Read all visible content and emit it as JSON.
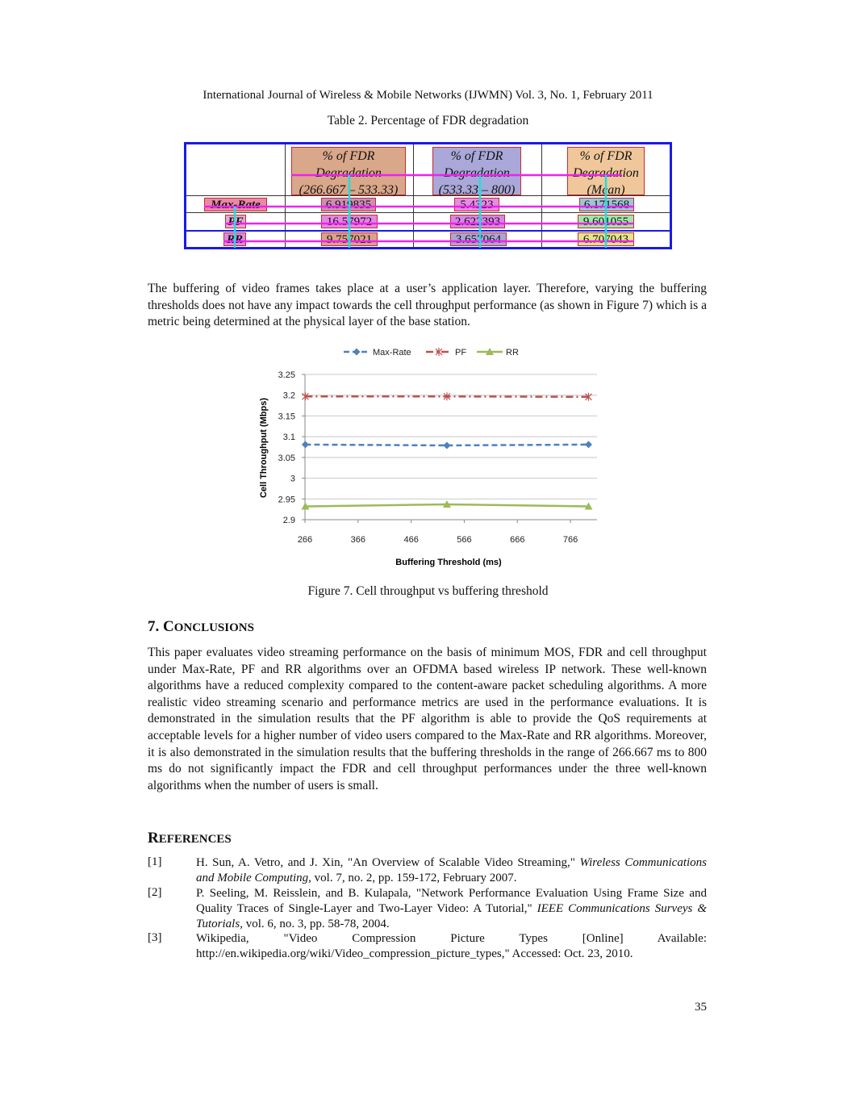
{
  "header": "International Journal of Wireless & Mobile Networks (IJWMN) Vol. 3, No. 1, February 2011",
  "table": {
    "caption": "Table 2. Percentage of FDR degradation",
    "columns": [
      "% of FDR Degradation (266.667 – 533.33)",
      "% of FDR Degradation (533.33 – 800)",
      "% of FDR Degradation (Mean)"
    ],
    "column_lines": [
      [
        "% of FDR",
        "Degradation",
        "(266.667 – 533.33)"
      ],
      [
        "% of FDR",
        "Degradation",
        "(533.33 – 800)"
      ],
      [
        "% of FDR",
        "Degradation",
        "(Mean)"
      ]
    ],
    "rows": [
      {
        "label": "Max-Rate",
        "values": [
          "6.919835",
          "5.4323",
          "6.171568"
        ]
      },
      {
        "label": "PF",
        "values": [
          "16.57972",
          "2.622393",
          "9.601055"
        ]
      },
      {
        "label": "RR",
        "values": [
          "9.757021",
          "3.657064",
          "6.707043"
        ]
      }
    ]
  },
  "paragraph1": "The buffering of video frames takes place at a user’s application layer. Therefore, varying the buffering thresholds does not have any impact towards the cell throughput performance (as shown in Figure 7) which is a metric being determined at the physical layer of the base station.",
  "chart_data": {
    "type": "line",
    "xlabel": "Buffering Threshold (ms)",
    "ylabel": "Cell Throughput (Mbps)",
    "xlim": [
      266,
      816
    ],
    "ylim": [
      2.9,
      3.25
    ],
    "xticks": [
      266,
      366,
      466,
      566,
      666,
      766
    ],
    "yticks": [
      2.9,
      2.95,
      3,
      3.05,
      3.1,
      3.15,
      3.2,
      3.25
    ],
    "ytick_labels": [
      "2.9",
      "2.95",
      "3",
      "3.05",
      "3.1",
      "3.15",
      "3.2",
      "3.25"
    ],
    "grid": true,
    "legend": "top",
    "series": [
      {
        "name": "Max-Rate",
        "color": "#4f81bd",
        "marker": "diamond",
        "x": [
          266.667,
          533.33,
          800
        ],
        "values": [
          3.081,
          3.079,
          3.081
        ]
      },
      {
        "name": "PF",
        "color": "#c0504d",
        "marker": "star",
        "x": [
          266.667,
          533.33,
          800
        ],
        "values": [
          3.197,
          3.197,
          3.196
        ]
      },
      {
        "name": "RR",
        "color": "#9bbb59",
        "marker": "triangle",
        "x": [
          266.667,
          533.33,
          800
        ],
        "values": [
          2.932,
          2.937,
          2.932
        ]
      }
    ]
  },
  "figure_caption": "Figure 7. Cell throughput vs buffering threshold",
  "conclusions": {
    "number": "7.",
    "title_first": "C",
    "title_rest": "ONCLUSIONS",
    "text": "This paper evaluates video streaming performance on the basis of minimum MOS, FDR and cell throughput under Max-Rate, PF and RR algorithms over an OFDMA based wireless IP network. These well-known algorithms have a reduced complexity compared to the content-aware packet scheduling algorithms. A more realistic video streaming scenario and performance metrics are used in the performance evaluations. It is demonstrated in the simulation results that the PF algorithm is able to provide the QoS requirements at acceptable levels for a higher number of video users compared to the Max-Rate and RR algorithms. Moreover, it is also demonstrated in the simulation results that the buffering thresholds in the range of 266.667 ms to 800 ms do not significantly impact the FDR and cell throughput performances under the three well-known algorithms when the number of users is small."
  },
  "references": {
    "title_first": "R",
    "title_rest": "EFERENCES",
    "items": [
      {
        "num": "[1]",
        "plain": "H. Sun, A. Vetro, and J. Xin, \"An Overview of Scalable Video Streaming,\" ",
        "italic": "Wireless Communications and Mobile Computing,",
        "tail": " vol. 7, no. 2, pp. 159-172, February 2007."
      },
      {
        "num": "[2]",
        "plain": "P. Seeling, M. Reisslein, and B. Kulapala, \"Network Performance Evaluation Using Frame Size and Quality Traces of Single-Layer and Two-Layer Video: A Tutorial,\" ",
        "italic": "IEEE Communications Surveys & Tutorials,",
        "tail": " vol. 6, no. 3, pp. 58-78, 2004."
      },
      {
        "num": "[3]",
        "line1": "Wikipedia, \"Video Compression Picture Types [Online] Available:",
        "line2": "http://en.wikipedia.org/wiki/Video_compression_picture_types,\" Accessed: Oct. 23, 2010."
      }
    ]
  },
  "page_number": "35"
}
